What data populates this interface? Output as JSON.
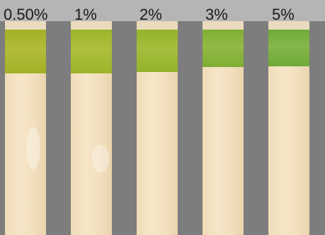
{
  "concentrations": [
    {
      "label": "0.50%",
      "band_color": "#a2b125",
      "band_color_light": "#b3bb3b"
    },
    {
      "label": "1%",
      "band_color": "#9db42a",
      "band_color_light": "#aebf3f"
    },
    {
      "label": "2%",
      "band_color": "#93b32a",
      "band_color_light": "#a6be3e"
    },
    {
      "label": "3%",
      "band_color": "#7fae33",
      "band_color_light": "#93b946"
    },
    {
      "label": "5%",
      "band_color": "#6eab39",
      "band_color_light": "#86b64c"
    }
  ],
  "colors": {
    "header": "#b5b5b5",
    "background": "#7d7d7d",
    "strip": "#f4e3c4"
  }
}
